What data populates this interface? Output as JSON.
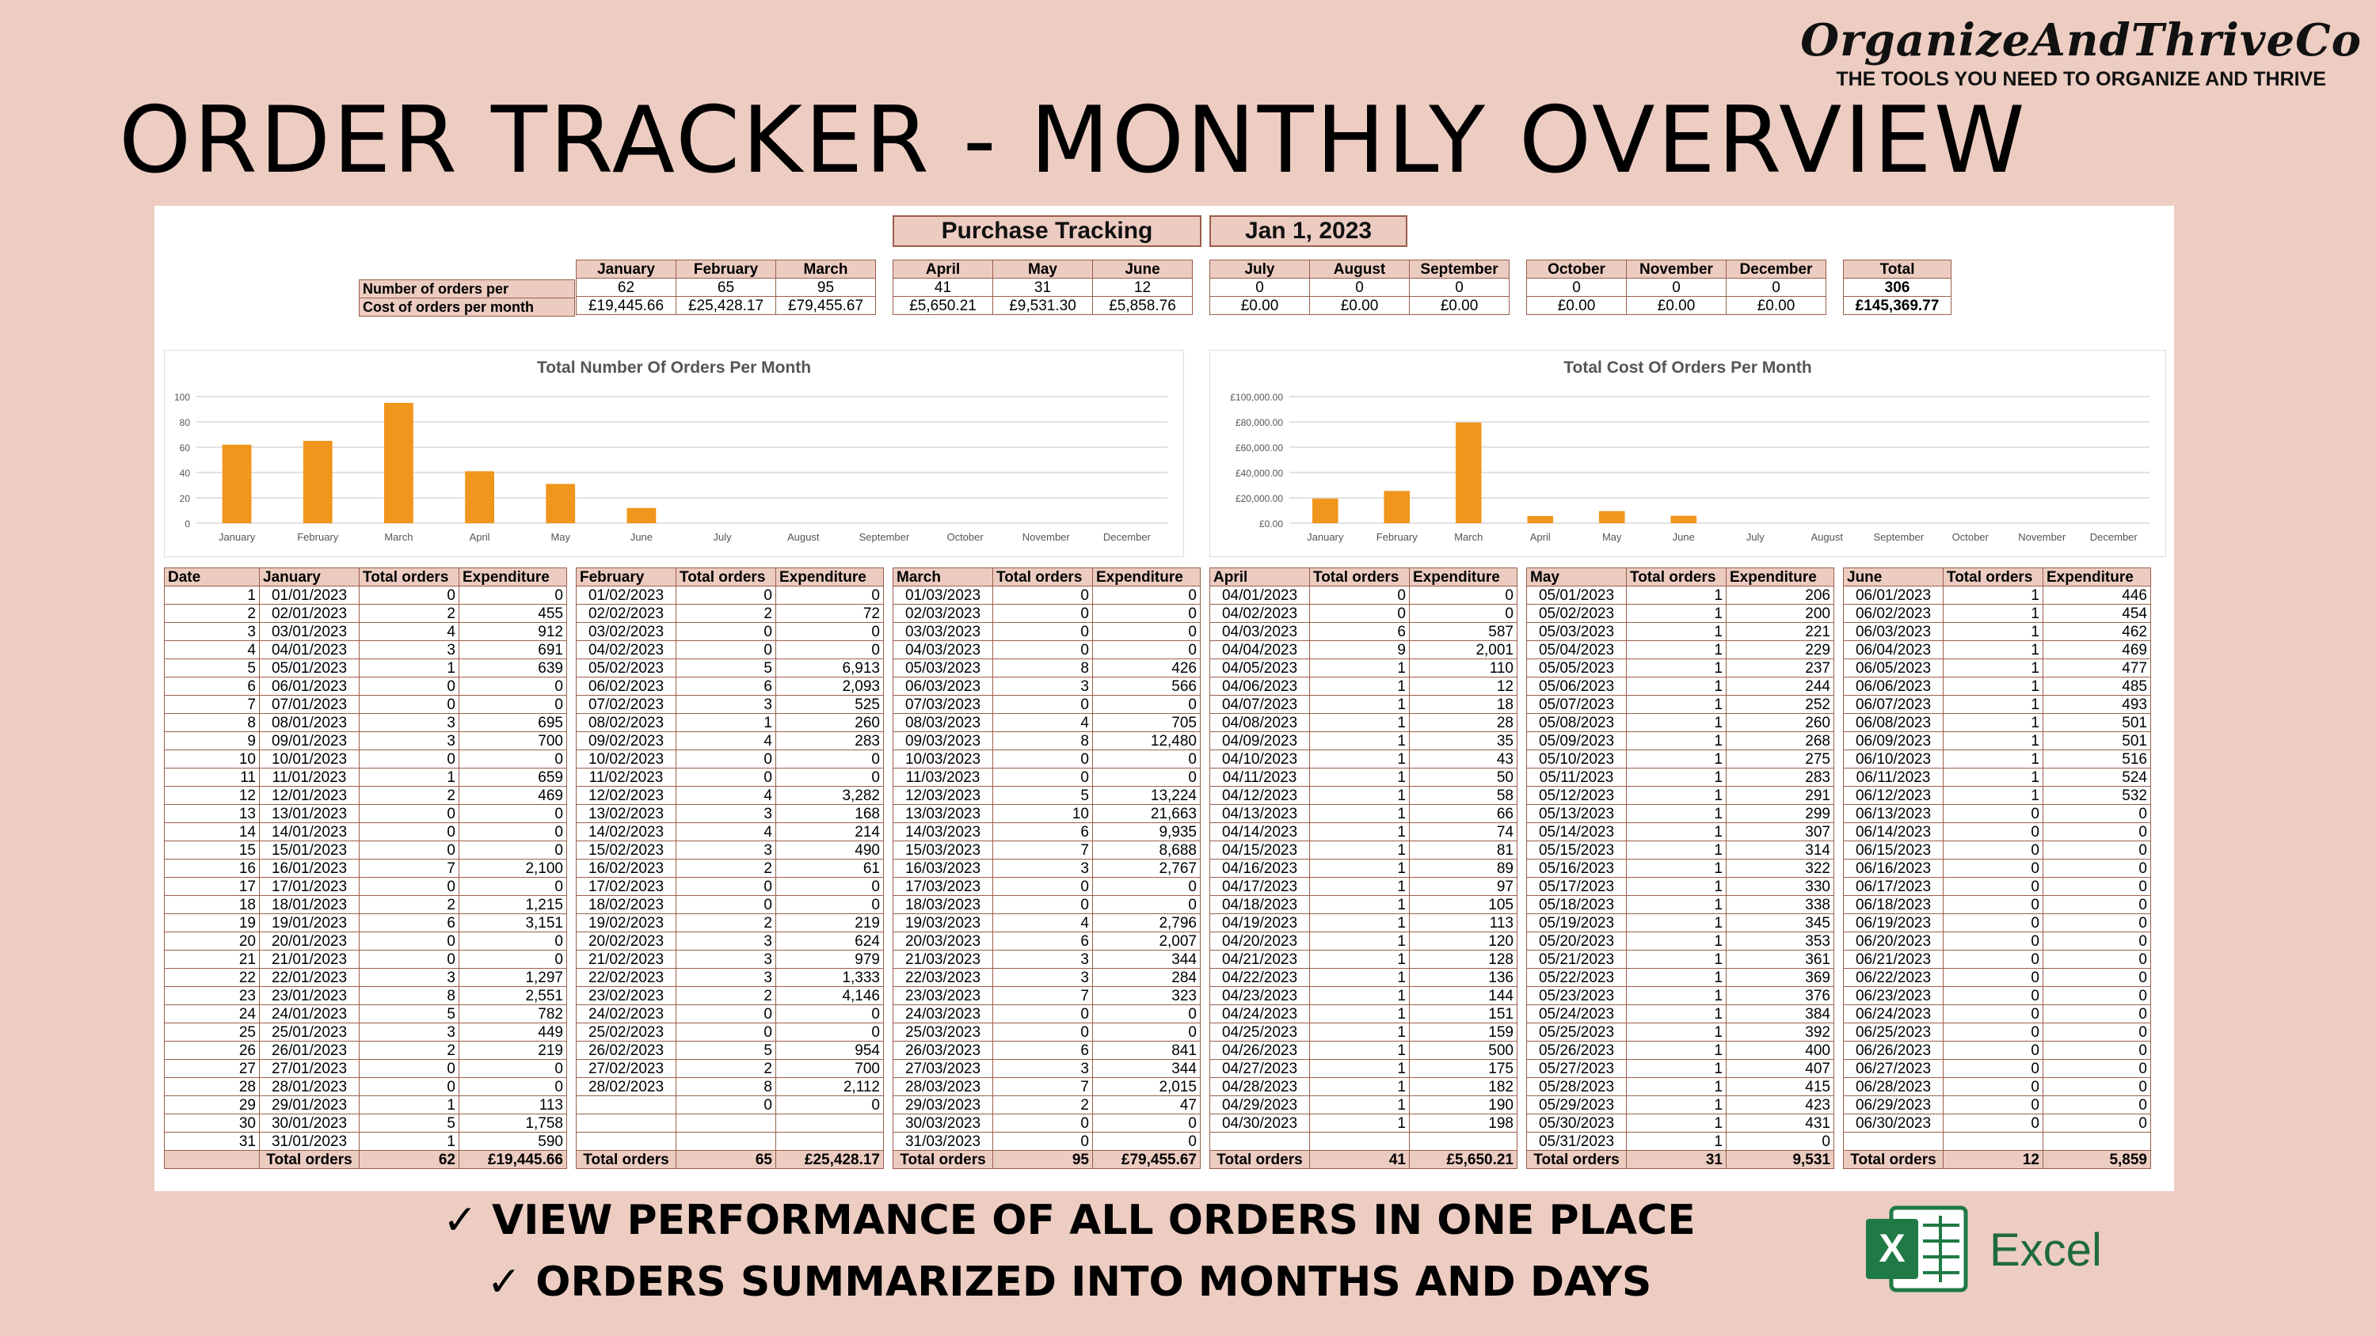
{
  "brand": {
    "name": "OrganizeAndThriveCo",
    "tagline": "THE TOOLS YOU NEED TO ORGANIZE AND THRIVE"
  },
  "title": "ORDER TRACKER - MONTHLY OVERVIEW",
  "sheet": {
    "heading": "Purchase Tracking",
    "date": "Jan 1, 2023"
  },
  "summary": {
    "row_labels": [
      "Number of orders per",
      "Cost of orders per month"
    ],
    "months": [
      {
        "name": "January",
        "orders": "62",
        "cost": "£19,445.66"
      },
      {
        "name": "February",
        "orders": "65",
        "cost": "£25,428.17"
      },
      {
        "name": "March",
        "orders": "95",
        "cost": "£79,455.67"
      },
      {
        "name": "April",
        "orders": "41",
        "cost": "£5,650.21"
      },
      {
        "name": "May",
        "orders": "31",
        "cost": "£9,531.30"
      },
      {
        "name": "June",
        "orders": "12",
        "cost": "£5,858.76"
      },
      {
        "name": "July",
        "orders": "0",
        "cost": "£0.00"
      },
      {
        "name": "August",
        "orders": "0",
        "cost": "£0.00"
      },
      {
        "name": "September",
        "orders": "0",
        "cost": "£0.00"
      },
      {
        "name": "October",
        "orders": "0",
        "cost": "£0.00"
      },
      {
        "name": "November",
        "orders": "0",
        "cost": "£0.00"
      },
      {
        "name": "December",
        "orders": "0",
        "cost": "£0.00"
      }
    ],
    "total": {
      "label": "Total",
      "orders": "306",
      "cost": "£145,369.77"
    }
  },
  "chart_data": [
    {
      "type": "bar",
      "title": "Total Number Of Orders Per Month",
      "categories": [
        "January",
        "February",
        "March",
        "April",
        "May",
        "June",
        "July",
        "August",
        "September",
        "October",
        "November",
        "December"
      ],
      "values": [
        62,
        65,
        95,
        41,
        31,
        12,
        0,
        0,
        0,
        0,
        0,
        0
      ],
      "ylim": [
        0,
        100
      ],
      "yticks": [
        "0",
        "20",
        "40",
        "60",
        "80",
        "100"
      ],
      "color": "#f0961c",
      "grid": true
    },
    {
      "type": "bar",
      "title": "Total Cost Of Orders Per Month",
      "categories": [
        "January",
        "February",
        "March",
        "April",
        "May",
        "June",
        "July",
        "August",
        "September",
        "October",
        "November",
        "December"
      ],
      "values": [
        19445.66,
        25428.17,
        79455.67,
        5650.21,
        9531.3,
        5858.76,
        0,
        0,
        0,
        0,
        0,
        0
      ],
      "ylim": [
        0,
        100000
      ],
      "yticks": [
        "£0.00",
        "£20,000.00",
        "£40,000.00",
        "£60,000.00",
        "£80,000.00",
        "£100,000.00"
      ],
      "color": "#f0961c",
      "grid": true
    }
  ],
  "daily": {
    "headers": {
      "date": "Date",
      "orders": "Total orders",
      "expenditure": "Expenditure",
      "total_label": "Total orders"
    },
    "months": [
      {
        "name": "January",
        "dates": [
          "01/01/2023",
          "02/01/2023",
          "03/01/2023",
          "04/01/2023",
          "05/01/2023",
          "06/01/2023",
          "07/01/2023",
          "08/01/2023",
          "09/01/2023",
          "10/01/2023",
          "11/01/2023",
          "12/01/2023",
          "13/01/2023",
          "14/01/2023",
          "15/01/2023",
          "16/01/2023",
          "17/01/2023",
          "18/01/2023",
          "19/01/2023",
          "20/01/2023",
          "21/01/2023",
          "22/01/2023",
          "23/01/2023",
          "24/01/2023",
          "25/01/2023",
          "26/01/2023",
          "27/01/2023",
          "28/01/2023",
          "29/01/2023",
          "30/01/2023",
          "31/01/2023"
        ],
        "orders": [
          "0",
          "2",
          "4",
          "3",
          "1",
          "0",
          "0",
          "3",
          "3",
          "0",
          "1",
          "2",
          "0",
          "0",
          "0",
          "7",
          "0",
          "2",
          "6",
          "0",
          "0",
          "3",
          "8",
          "5",
          "3",
          "2",
          "0",
          "0",
          "1",
          "5",
          "1"
        ],
        "exp": [
          "0",
          "455",
          "912",
          "691",
          "639",
          "0",
          "0",
          "695",
          "700",
          "0",
          "659",
          "469",
          "0",
          "0",
          "0",
          "2,100",
          "0",
          "1,215",
          "3,151",
          "0",
          "0",
          "1,297",
          "2,551",
          "782",
          "449",
          "219",
          "0",
          "0",
          "113",
          "1,758",
          "590"
        ],
        "total_orders": "62",
        "total_exp": "£19,445.66"
      },
      {
        "name": "February",
        "dates": [
          "01/02/2023",
          "02/02/2023",
          "03/02/2023",
          "04/02/2023",
          "05/02/2023",
          "06/02/2023",
          "07/02/2023",
          "08/02/2023",
          "09/02/2023",
          "10/02/2023",
          "11/02/2023",
          "12/02/2023",
          "13/02/2023",
          "14/02/2023",
          "15/02/2023",
          "16/02/2023",
          "17/02/2023",
          "18/02/2023",
          "19/02/2023",
          "20/02/2023",
          "21/02/2023",
          "22/02/2023",
          "23/02/2023",
          "24/02/2023",
          "25/02/2023",
          "26/02/2023",
          "27/02/2023",
          "28/02/2023",
          "",
          "",
          ""
        ],
        "orders": [
          "0",
          "2",
          "0",
          "0",
          "5",
          "6",
          "3",
          "1",
          "4",
          "0",
          "0",
          "4",
          "3",
          "4",
          "3",
          "2",
          "0",
          "0",
          "2",
          "3",
          "3",
          "3",
          "2",
          "0",
          "0",
          "5",
          "2",
          "8",
          "0",
          "",
          ""
        ],
        "exp": [
          "0",
          "72",
          "0",
          "0",
          "6,913",
          "2,093",
          "525",
          "260",
          "283",
          "0",
          "0",
          "3,282",
          "168",
          "214",
          "490",
          "61",
          "0",
          "0",
          "219",
          "624",
          "979",
          "1,333",
          "4,146",
          "0",
          "0",
          "954",
          "700",
          "2,112",
          "0",
          "",
          ""
        ],
        "total_orders": "65",
        "total_exp": "£25,428.17"
      },
      {
        "name": "March",
        "dates": [
          "01/03/2023",
          "02/03/2023",
          "03/03/2023",
          "04/03/2023",
          "05/03/2023",
          "06/03/2023",
          "07/03/2023",
          "08/03/2023",
          "09/03/2023",
          "10/03/2023",
          "11/03/2023",
          "12/03/2023",
          "13/03/2023",
          "14/03/2023",
          "15/03/2023",
          "16/03/2023",
          "17/03/2023",
          "18/03/2023",
          "19/03/2023",
          "20/03/2023",
          "21/03/2023",
          "22/03/2023",
          "23/03/2023",
          "24/03/2023",
          "25/03/2023",
          "26/03/2023",
          "27/03/2023",
          "28/03/2023",
          "29/03/2023",
          "30/03/2023",
          "31/03/2023"
        ],
        "orders": [
          "0",
          "0",
          "0",
          "0",
          "8",
          "3",
          "0",
          "4",
          "8",
          "0",
          "0",
          "5",
          "10",
          "6",
          "7",
          "3",
          "0",
          "0",
          "4",
          "6",
          "3",
          "3",
          "7",
          "0",
          "0",
          "6",
          "3",
          "7",
          "2",
          "0",
          "0"
        ],
        "exp": [
          "0",
          "0",
          "0",
          "0",
          "426",
          "566",
          "0",
          "705",
          "12,480",
          "0",
          "0",
          "13,224",
          "21,663",
          "9,935",
          "8,688",
          "2,767",
          "0",
          "0",
          "2,796",
          "2,007",
          "344",
          "284",
          "323",
          "0",
          "0",
          "841",
          "344",
          "2,015",
          "47",
          "0",
          "0"
        ],
        "total_orders": "95",
        "total_exp": "£79,455.67"
      },
      {
        "name": "April",
        "dates": [
          "04/01/2023",
          "04/02/2023",
          "04/03/2023",
          "04/04/2023",
          "04/05/2023",
          "04/06/2023",
          "04/07/2023",
          "04/08/2023",
          "04/09/2023",
          "04/10/2023",
          "04/11/2023",
          "04/12/2023",
          "04/13/2023",
          "04/14/2023",
          "04/15/2023",
          "04/16/2023",
          "04/17/2023",
          "04/18/2023",
          "04/19/2023",
          "04/20/2023",
          "04/21/2023",
          "04/22/2023",
          "04/23/2023",
          "04/24/2023",
          "04/25/2023",
          "04/26/2023",
          "04/27/2023",
          "04/28/2023",
          "04/29/2023",
          "04/30/2023",
          ""
        ],
        "orders": [
          "0",
          "0",
          "6",
          "9",
          "1",
          "1",
          "1",
          "1",
          "1",
          "1",
          "1",
          "1",
          "1",
          "1",
          "1",
          "1",
          "1",
          "1",
          "1",
          "1",
          "1",
          "1",
          "1",
          "1",
          "1",
          "1",
          "1",
          "1",
          "1",
          "1",
          ""
        ],
        "exp": [
          "0",
          "0",
          "587",
          "2,001",
          "110",
          "12",
          "18",
          "28",
          "35",
          "43",
          "50",
          "58",
          "66",
          "74",
          "81",
          "89",
          "97",
          "105",
          "113",
          "120",
          "128",
          "136",
          "144",
          "151",
          "159",
          "500",
          "175",
          "182",
          "190",
          "198",
          ""
        ],
        "total_orders": "41",
        "total_exp": "£5,650.21"
      },
      {
        "name": "May",
        "dates": [
          "05/01/2023",
          "05/02/2023",
          "05/03/2023",
          "05/04/2023",
          "05/05/2023",
          "05/06/2023",
          "05/07/2023",
          "05/08/2023",
          "05/09/2023",
          "05/10/2023",
          "05/11/2023",
          "05/12/2023",
          "05/13/2023",
          "05/14/2023",
          "05/15/2023",
          "05/16/2023",
          "05/17/2023",
          "05/18/2023",
          "05/19/2023",
          "05/20/2023",
          "05/21/2023",
          "05/22/2023",
          "05/23/2023",
          "05/24/2023",
          "05/25/2023",
          "05/26/2023",
          "05/27/2023",
          "05/28/2023",
          "05/29/2023",
          "05/30/2023",
          "05/31/2023"
        ],
        "orders": [
          "1",
          "1",
          "1",
          "1",
          "1",
          "1",
          "1",
          "1",
          "1",
          "1",
          "1",
          "1",
          "1",
          "1",
          "1",
          "1",
          "1",
          "1",
          "1",
          "1",
          "1",
          "1",
          "1",
          "1",
          "1",
          "1",
          "1",
          "1",
          "1",
          "1",
          "1"
        ],
        "exp": [
          "206",
          "200",
          "221",
          "229",
          "237",
          "244",
          "252",
          "260",
          "268",
          "275",
          "283",
          "291",
          "299",
          "307",
          "314",
          "322",
          "330",
          "338",
          "345",
          "353",
          "361",
          "369",
          "376",
          "384",
          "392",
          "400",
          "407",
          "415",
          "423",
          "431",
          "0"
        ],
        "total_orders": "31",
        "total_exp": "9,531"
      },
      {
        "name": "June",
        "dates": [
          "06/01/2023",
          "06/02/2023",
          "06/03/2023",
          "06/04/2023",
          "06/05/2023",
          "06/06/2023",
          "06/07/2023",
          "06/08/2023",
          "06/09/2023",
          "06/10/2023",
          "06/11/2023",
          "06/12/2023",
          "06/13/2023",
          "06/14/2023",
          "06/15/2023",
          "06/16/2023",
          "06/17/2023",
          "06/18/2023",
          "06/19/2023",
          "06/20/2023",
          "06/21/2023",
          "06/22/2023",
          "06/23/2023",
          "06/24/2023",
          "06/25/2023",
          "06/26/2023",
          "06/27/2023",
          "06/28/2023",
          "06/29/2023",
          "06/30/2023",
          ""
        ],
        "orders": [
          "1",
          "1",
          "1",
          "1",
          "1",
          "1",
          "1",
          "1",
          "1",
          "1",
          "1",
          "1",
          "0",
          "0",
          "0",
          "0",
          "0",
          "0",
          "0",
          "0",
          "0",
          "0",
          "0",
          "0",
          "0",
          "0",
          "0",
          "0",
          "0",
          "0",
          ""
        ],
        "exp": [
          "446",
          "454",
          "462",
          "469",
          "477",
          "485",
          "493",
          "501",
          "501",
          "516",
          "524",
          "532",
          "0",
          "0",
          "0",
          "0",
          "0",
          "0",
          "0",
          "0",
          "0",
          "0",
          "0",
          "0",
          "0",
          "0",
          "0",
          "0",
          "0",
          "0",
          ""
        ],
        "total_orders": "12",
        "total_exp": "5,859"
      }
    ]
  },
  "bullets": [
    "✓ VIEW PERFORMANCE OF ALL ORDERS IN ONE PLACE",
    "✓ ORDERS SUMMARIZED INTO MONTHS AND DAYS"
  ],
  "excel": {
    "label": "Excel",
    "icon": "excel-logo-icon",
    "color": "#1f7a45"
  }
}
